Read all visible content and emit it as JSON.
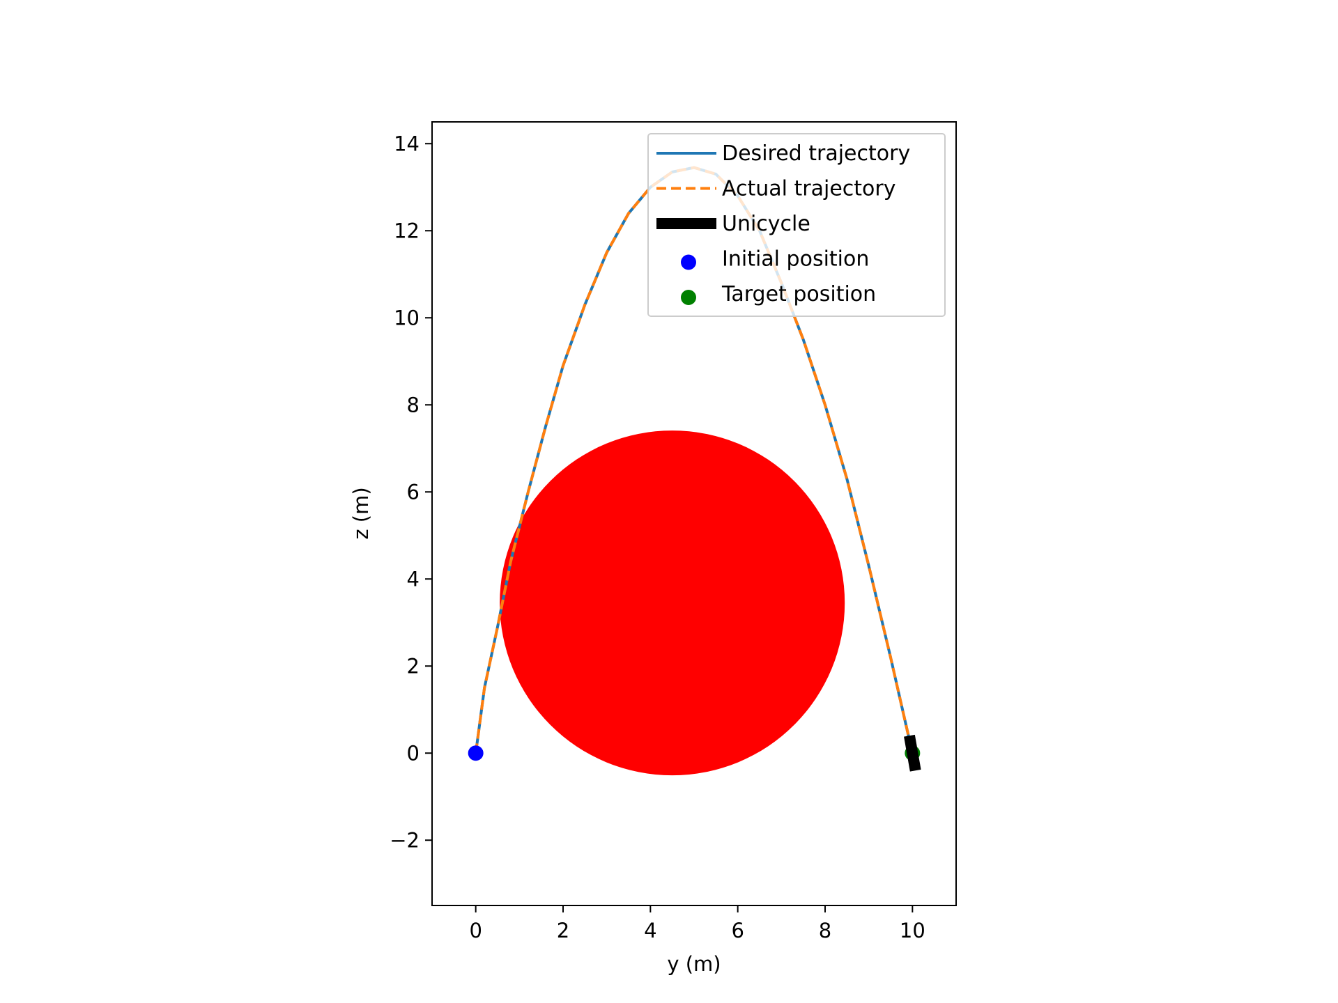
{
  "chart_data": {
    "type": "line",
    "xlabel": "y (m)",
    "ylabel": "z (m)",
    "xlim": [
      -1,
      11
    ],
    "ylim": [
      -3.5,
      14.5
    ],
    "xticks": [
      0,
      2,
      4,
      6,
      8,
      10
    ],
    "yticks": [
      -2,
      0,
      2,
      4,
      6,
      8,
      10,
      12,
      14
    ],
    "xtick_labels": [
      "0",
      "2",
      "4",
      "6",
      "8",
      "10"
    ],
    "ytick_labels": [
      "−2",
      "0",
      "2",
      "4",
      "6",
      "8",
      "10",
      "12",
      "14"
    ],
    "grid": false,
    "legend_position": "top-right",
    "obstacle": {
      "center": [
        4.5,
        3.45
      ],
      "radius": 3.95,
      "color": "#ff0000"
    },
    "series": [
      {
        "name": "Desired trajectory",
        "style": "solid",
        "color": "#1f77b4",
        "x": [
          0,
          0.2,
          0.5,
          0.8,
          1.2,
          1.6,
          2.0,
          2.5,
          3.0,
          3.5,
          4.0,
          4.5,
          5.0,
          5.5,
          6.0,
          6.5,
          7.0,
          7.5,
          8.0,
          8.5,
          9.0,
          9.5,
          10.0
        ],
        "y": [
          0,
          1.5,
          2.9,
          4.4,
          6.0,
          7.5,
          8.9,
          10.3,
          11.5,
          12.4,
          13.0,
          13.35,
          13.45,
          13.3,
          12.8,
          12.0,
          10.8,
          9.5,
          8.0,
          6.3,
          4.3,
          2.2,
          0
        ]
      },
      {
        "name": "Actual trajectory",
        "style": "dashed",
        "color": "#ff7f0e",
        "x": [
          0,
          0.2,
          0.5,
          0.8,
          1.2,
          1.6,
          2.0,
          2.5,
          3.0,
          3.5,
          4.0,
          4.5,
          5.0,
          5.5,
          6.0,
          6.5,
          7.0,
          7.5,
          8.0,
          8.5,
          9.0,
          9.5,
          10.0
        ],
        "y": [
          0,
          1.5,
          2.9,
          4.4,
          6.0,
          7.5,
          8.9,
          10.3,
          11.5,
          12.4,
          13.0,
          13.35,
          13.45,
          13.3,
          12.8,
          12.0,
          10.8,
          9.5,
          8.0,
          6.3,
          4.3,
          2.2,
          0
        ]
      },
      {
        "name": "Unicycle",
        "style": "thick",
        "color": "#000000",
        "x": [
          9.93,
          10.07
        ],
        "y": [
          0.4,
          -0.4
        ]
      },
      {
        "name": "Initial position",
        "style": "marker",
        "color": "#0000ff",
        "x": [
          0
        ],
        "y": [
          0
        ]
      },
      {
        "name": "Target position",
        "style": "marker",
        "color": "#008000",
        "x": [
          10
        ],
        "y": [
          0
        ]
      }
    ]
  }
}
